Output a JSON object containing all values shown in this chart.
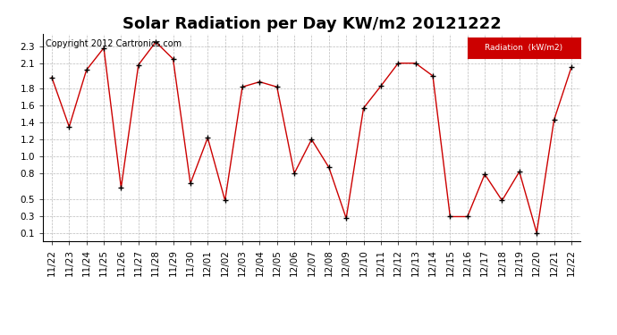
{
  "title": "Solar Radiation per Day KW/m2 20121222",
  "copyright_text": "Copyright 2012 Cartronics.com",
  "legend_label": "Radiation  (kW/m2)",
  "dates": [
    "11/22",
    "11/23",
    "11/24",
    "11/25",
    "11/26",
    "11/27",
    "11/28",
    "11/29",
    "11/30",
    "12/01",
    "12/02",
    "12/03",
    "12/04",
    "12/05",
    "12/06",
    "12/07",
    "12/08",
    "12/09",
    "12/10",
    "12/11",
    "12/12",
    "12/13",
    "12/14",
    "12/15",
    "12/16",
    "12/17",
    "12/18",
    "12/19",
    "12/20",
    "12/21",
    "12/22"
  ],
  "values": [
    1.93,
    1.35,
    2.02,
    2.28,
    0.63,
    2.08,
    2.35,
    2.15,
    0.68,
    1.22,
    0.48,
    1.82,
    1.88,
    1.82,
    0.8,
    1.2,
    0.87,
    0.27,
    1.57,
    1.83,
    2.1,
    2.1,
    1.95,
    0.29,
    0.29,
    0.79,
    0.48,
    0.82,
    0.1,
    1.43,
    2.05
  ],
  "line_color": "#cc0000",
  "marker_color": "#000000",
  "background_color": "#ffffff",
  "grid_color": "#aaaaaa",
  "title_fontsize": 13,
  "tick_fontsize": 7.5,
  "copyright_fontsize": 7,
  "yticks": [
    0.1,
    0.3,
    0.5,
    0.8,
    1.0,
    1.2,
    1.4,
    1.6,
    1.8,
    2.1,
    2.3
  ],
  "ylim": [
    0.0,
    2.45
  ],
  "legend_bg": "#cc0000",
  "legend_text_color": "#ffffff"
}
